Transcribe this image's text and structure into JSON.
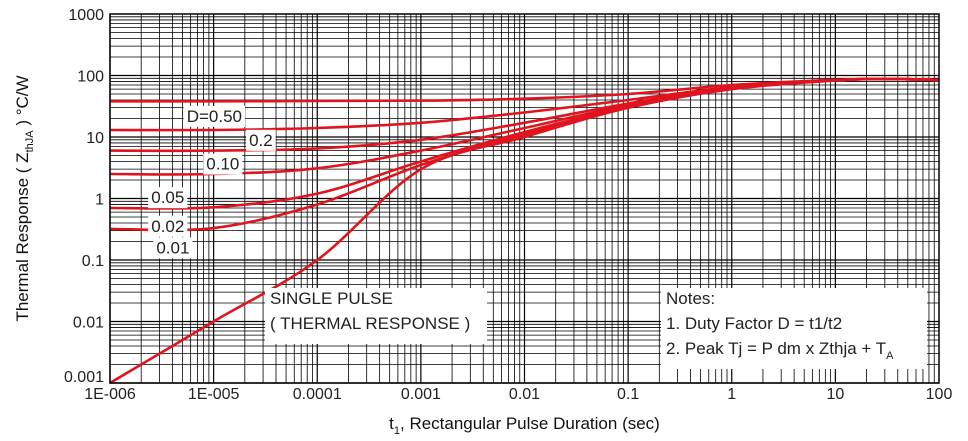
{
  "chart_data": {
    "type": "line",
    "title": "",
    "x_scale": "log",
    "y_scale": "log",
    "xlim": [
      1e-06,
      100
    ],
    "ylim": [
      0.001,
      1000
    ],
    "grid": true,
    "xlabel": {
      "prefix": "t",
      "subscript": "1",
      "suffix": ", Rectangular Pulse Duration (sec)"
    },
    "ylabel": {
      "prefix": "Thermal Response ( Z",
      "subscript": "thJA",
      "suffix": " ) °C/W"
    },
    "x_ticks": [
      {
        "value": 1e-06,
        "label": "1E-006"
      },
      {
        "value": 1e-05,
        "label": "1E-005"
      },
      {
        "value": 0.0001,
        "label": "0.0001"
      },
      {
        "value": 0.001,
        "label": "0.001"
      },
      {
        "value": 0.01,
        "label": "0.01"
      },
      {
        "value": 0.1,
        "label": "0.1"
      },
      {
        "value": 1,
        "label": "1"
      },
      {
        "value": 10,
        "label": "10"
      },
      {
        "value": 100,
        "label": "100"
      }
    ],
    "y_ticks": [
      {
        "value": 0.001,
        "label": "0.001"
      },
      {
        "value": 0.01,
        "label": "0.01"
      },
      {
        "value": 0.1,
        "label": "0.1"
      },
      {
        "value": 1,
        "label": "1"
      },
      {
        "value": 10,
        "label": "10"
      },
      {
        "value": 100,
        "label": "100"
      },
      {
        "value": 1000,
        "label": "1000"
      }
    ],
    "series_color": "#e0141e",
    "series": [
      {
        "name": "D=0.50",
        "label_at": [
          5.5e-06,
          22
        ],
        "x": [
          1e-06,
          1e-05,
          0.0001,
          0.001,
          0.01,
          0.1,
          1,
          10,
          30,
          100
        ],
        "y": [
          38,
          38,
          38.5,
          39,
          42,
          50,
          70,
          85,
          88,
          85
        ]
      },
      {
        "name": "0.2",
        "label_at": [
          2.2e-05,
          9
        ],
        "x": [
          1e-06,
          1e-05,
          0.0001,
          0.001,
          0.01,
          0.1,
          1,
          10,
          30,
          100
        ],
        "y": [
          13,
          13,
          14,
          17,
          25,
          40,
          65,
          84,
          88,
          85
        ]
      },
      {
        "name": "0.10",
        "label_at": [
          8.5e-06,
          3.7
        ],
        "x": [
          1e-06,
          1e-05,
          0.0001,
          0.001,
          0.01,
          0.1,
          1,
          10,
          30,
          100
        ],
        "y": [
          6,
          6,
          6.5,
          9,
          17,
          35,
          63,
          84,
          88,
          85
        ]
      },
      {
        "name": "0.05",
        "label_at": [
          2.5e-06,
          1.05
        ],
        "x": [
          1e-06,
          1e-05,
          0.0001,
          0.001,
          0.01,
          0.1,
          1,
          10,
          30,
          100
        ],
        "y": [
          2.5,
          2.5,
          3.1,
          6,
          14,
          33,
          62,
          84,
          88,
          85
        ]
      },
      {
        "name": "0.02",
        "label_at": [
          2.5e-06,
          0.36
        ],
        "x": [
          1e-06,
          1e-05,
          0.0001,
          0.001,
          0.01,
          0.1,
          1,
          10,
          30,
          100
        ],
        "y": [
          0.7,
          0.72,
          1.2,
          4,
          12,
          31,
          61,
          84,
          88,
          85
        ]
      },
      {
        "name": "0.01",
        "label_at": [
          2.8e-06,
          0.16
        ],
        "x": [
          1e-06,
          1e-05,
          0.0001,
          0.001,
          0.01,
          0.1,
          1,
          10,
          30,
          100
        ],
        "y": [
          0.32,
          0.33,
          0.8,
          3.5,
          11,
          30,
          61,
          84,
          88,
          85
        ]
      },
      {
        "name": "SINGLE PULSE",
        "x": [
          1e-06,
          1e-05,
          0.0001,
          0.001,
          0.01,
          0.1,
          1,
          10,
          30,
          100
        ],
        "y": [
          0.001,
          0.01,
          0.1,
          3,
          10,
          30,
          60,
          83,
          88,
          85
        ]
      }
    ],
    "annotations": {
      "single_pulse": {
        "lines": [
          "SINGLE PULSE",
          "( THERMAL RESPONSE )"
        ]
      },
      "notes": {
        "lines": [
          "Notes:",
          "1. Duty Factor D = t1/t2",
          "2. Peak Tj = P dm x Zthja + T"
        ],
        "last_subscript": "A"
      }
    }
  }
}
